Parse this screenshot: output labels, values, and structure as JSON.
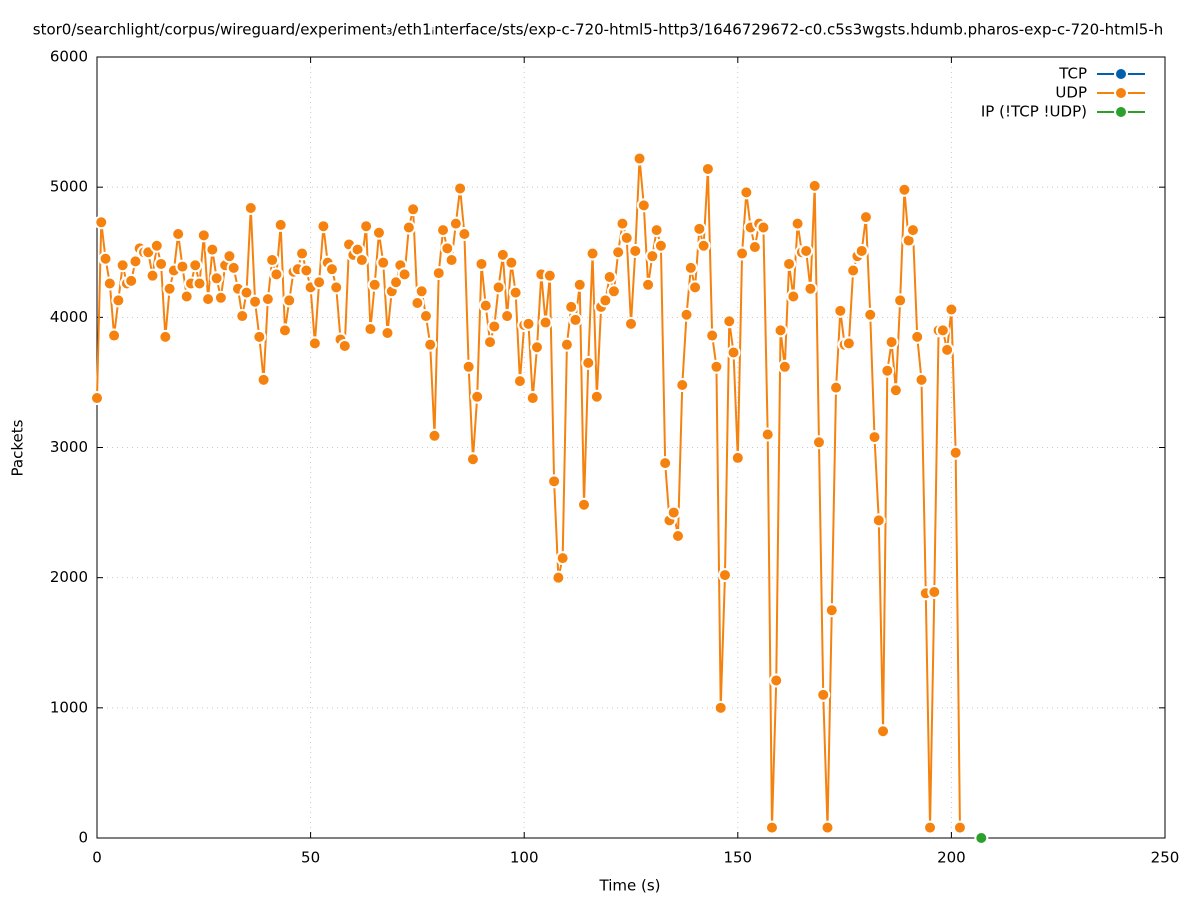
{
  "chart_data": {
    "type": "line",
    "title": "stor0/searchlight/corpus/wireguard/experiment₃/eth1ᵢnterface/sts/exp-c-720-html5-http3/1646729672-c0.c5s3wgsts.hdumb.pharos-exp-c-720-html5-h",
    "x_label": "Time (s)",
    "y_label": "Packets",
    "xlim": [
      0,
      250
    ],
    "xticks": [
      0,
      50,
      100,
      150,
      200,
      250
    ],
    "ylim": [
      0,
      6000
    ],
    "yticks": [
      0,
      1000,
      2000,
      3000,
      4000,
      5000,
      6000
    ],
    "grid": true,
    "legend": "top-right",
    "series": [
      {
        "name": "TCP",
        "color": "#0060ad",
        "x": [],
        "values": []
      },
      {
        "name": "UDP",
        "color": "#f5820f",
        "x": [
          0,
          1,
          2,
          3,
          4,
          5,
          6,
          7,
          8,
          9,
          10,
          11,
          12,
          13,
          14,
          15,
          16,
          17,
          18,
          19,
          20,
          21,
          22,
          23,
          24,
          25,
          26,
          27,
          28,
          29,
          30,
          31,
          32,
          33,
          34,
          35,
          36,
          37,
          38,
          39,
          40,
          41,
          42,
          43,
          44,
          45,
          46,
          47,
          48,
          49,
          50,
          51,
          52,
          53,
          54,
          55,
          56,
          57,
          58,
          59,
          60,
          61,
          62,
          63,
          64,
          65,
          66,
          67,
          68,
          69,
          70,
          71,
          72,
          73,
          74,
          75,
          76,
          77,
          78,
          79,
          80,
          81,
          82,
          83,
          84,
          85,
          86,
          87,
          88,
          89,
          90,
          91,
          92,
          93,
          94,
          95,
          96,
          97,
          98,
          99,
          100,
          101,
          102,
          103,
          104,
          105,
          106,
          107,
          108,
          109,
          110,
          111,
          112,
          113,
          114,
          115,
          116,
          117,
          118,
          119,
          120,
          121,
          122,
          123,
          124,
          125,
          126,
          127,
          128,
          129,
          130,
          131,
          132,
          133,
          134,
          135,
          136,
          137,
          138,
          139,
          140,
          141,
          142,
          143,
          144,
          145,
          146,
          147,
          148,
          149,
          150,
          151,
          152,
          153,
          154,
          155,
          156,
          157,
          158,
          159,
          160,
          161,
          162,
          163,
          164,
          165,
          166,
          167,
          168,
          169,
          170,
          171,
          172,
          173,
          174,
          175,
          176,
          177,
          178,
          179,
          180,
          181,
          182,
          183,
          184,
          185,
          186,
          187,
          188,
          189,
          190,
          191,
          192,
          193,
          194,
          195,
          196,
          197,
          198,
          199,
          200,
          201,
          202
        ],
        "values": [
          3380,
          4730,
          4450,
          4260,
          3860,
          4130,
          4400,
          4260,
          4280,
          4430,
          4530,
          4500,
          4500,
          4320,
          4550,
          4410,
          3850,
          4220,
          4360,
          4640,
          4390,
          4160,
          4260,
          4400,
          4260,
          4630,
          4140,
          4520,
          4300,
          4150,
          4400,
          4470,
          4380,
          4220,
          4010,
          4190,
          4840,
          4120,
          3850,
          3520,
          4140,
          4440,
          4330,
          4710,
          3900,
          4130,
          4350,
          4370,
          4490,
          4360,
          4230,
          3800,
          4270,
          4700,
          4420,
          4370,
          4230,
          3830,
          3780,
          4560,
          4480,
          4520,
          4440,
          4700,
          3910,
          4250,
          4650,
          4420,
          3880,
          4200,
          4270,
          4400,
          4330,
          4690,
          4830,
          4110,
          4200,
          4010,
          3790,
          3090,
          4340,
          4670,
          4530,
          4440,
          4720,
          4990,
          4640,
          3620,
          2910,
          3390,
          4410,
          4090,
          3810,
          3930,
          4230,
          4480,
          4010,
          4420,
          4190,
          3510,
          3940,
          3950,
          3380,
          3770,
          4330,
          3960,
          4320,
          2740,
          2000,
          2150,
          3790,
          4080,
          3980,
          4250,
          2560,
          3650,
          4490,
          3390,
          4080,
          4130,
          4310,
          4200,
          4500,
          4720,
          4610,
          3950,
          4510,
          5220,
          4860,
          4250,
          4470,
          4670,
          4550,
          2880,
          2440,
          2500,
          2320,
          3480,
          4020,
          4380,
          4230,
          4680,
          4550,
          5140,
          3860,
          3620,
          1000,
          2020,
          3970,
          3730,
          2920,
          4490,
          4960,
          4690,
          4540,
          4720,
          4690,
          3100,
          80,
          1210,
          3900,
          3620,
          4410,
          4160,
          4720,
          4500,
          4510,
          4220,
          5010,
          3040,
          1100,
          80,
          1750,
          3460,
          4050,
          3790,
          3800,
          4360,
          4470,
          4510,
          4770,
          4020,
          3080,
          2440,
          820,
          3590,
          3810,
          3440,
          4130,
          4980,
          4590,
          4670,
          3850,
          3520,
          1880,
          80,
          1890,
          3900,
          3900,
          3750,
          4060,
          2960,
          80
        ]
      },
      {
        "name": "IP (!TCP  !UDP)",
        "color": "#2ca02c",
        "x": [
          207
        ],
        "values": [
          0
        ]
      }
    ]
  }
}
